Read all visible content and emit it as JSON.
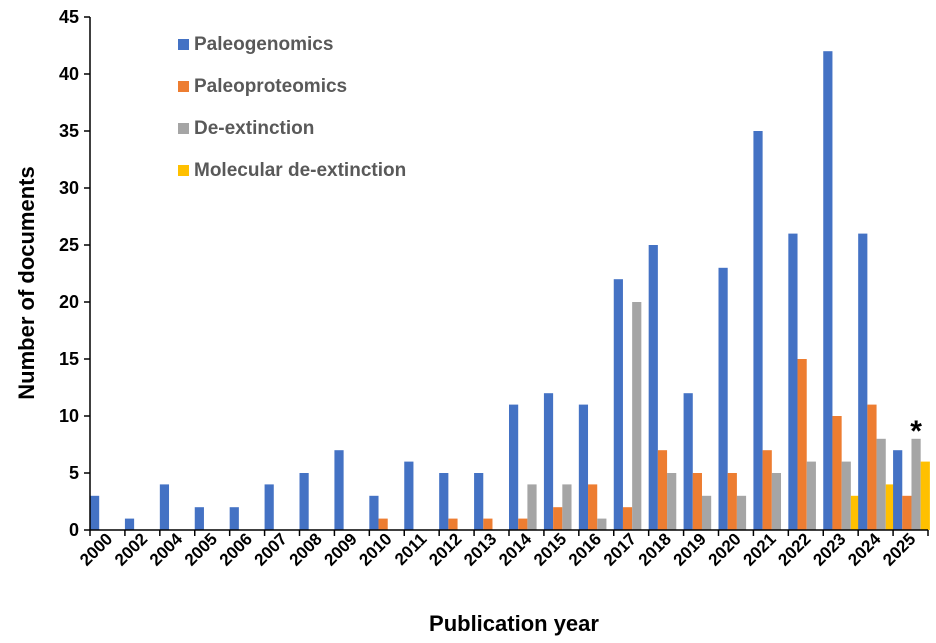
{
  "chart_data": {
    "type": "bar",
    "title": "",
    "xlabel": "Publication year",
    "ylabel": "Number of documents",
    "ylim": [
      0,
      45
    ],
    "yticks": [
      "0",
      "5",
      "10",
      "15",
      "20",
      "25",
      "30",
      "35",
      "40",
      "45"
    ],
    "grid": false,
    "legend_position": "top-left",
    "categories": [
      "2000",
      "2002",
      "2004",
      "2005",
      "2006",
      "2007",
      "2008",
      "2009",
      "2010",
      "2011",
      "2012",
      "2013",
      "2014",
      "2015",
      "2016",
      "2017",
      "2018",
      "2019",
      "2020",
      "2021",
      "2022",
      "2023",
      "2024",
      "2025"
    ],
    "series": [
      {
        "name": "Paleogenomics",
        "color": "#4472C4",
        "values": [
          3,
          1,
          4,
          2,
          2,
          4,
          5,
          7,
          3,
          6,
          5,
          5,
          11,
          12,
          11,
          22,
          25,
          12,
          23,
          35,
          26,
          42,
          26,
          7
        ]
      },
      {
        "name": "Paleoproteomics",
        "color": "#ED7D31",
        "values": [
          0,
          0,
          0,
          0,
          0,
          0,
          0,
          0,
          1,
          0,
          1,
          1,
          1,
          2,
          4,
          2,
          7,
          5,
          5,
          7,
          15,
          10,
          11,
          3
        ]
      },
      {
        "name": "De-extinction",
        "color": "#A5A5A5",
        "values": [
          0,
          0,
          0,
          0,
          0,
          0,
          0,
          0,
          0,
          0,
          0,
          0,
          4,
          4,
          1,
          20,
          5,
          3,
          3,
          5,
          6,
          6,
          8,
          8
        ]
      },
      {
        "name": "Molecular de-extinction",
        "color": "#FFC000",
        "values": [
          0,
          0,
          0,
          0,
          0,
          0,
          0,
          0,
          0,
          0,
          0,
          0,
          0,
          0,
          0,
          0,
          0,
          0,
          0,
          0,
          0,
          3,
          4,
          6
        ]
      }
    ],
    "annotations": [
      {
        "text": "*",
        "category": "2025",
        "series": "De-extinction"
      }
    ]
  }
}
